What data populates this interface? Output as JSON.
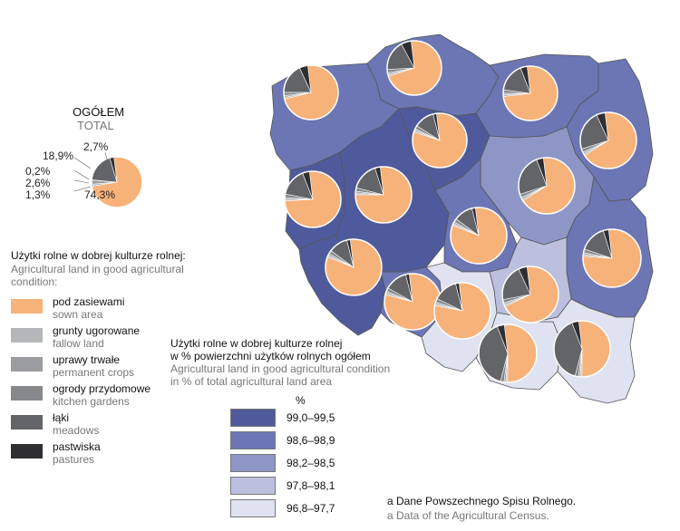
{
  "total": {
    "title_pl": "OGÓŁEM",
    "title_en": "TOTAL",
    "labels": [
      "18,9%",
      "2,7%",
      "0,2%",
      "2,6%",
      "1,3%",
      "74,3%"
    ]
  },
  "categories_title": {
    "pl": "Użytki rolne w dobrej kulturze rolnej:",
    "en": "Agricultural land in good agricultural condition:"
  },
  "categories": [
    {
      "pl": "pod zasiewami",
      "en": "sown area",
      "color": "#f7b27a"
    },
    {
      "pl": "grunty ugorowane",
      "en": "fallow land",
      "color": "#b4b6b9"
    },
    {
      "pl": "uprawy trwałe",
      "en": "permanent crops",
      "color": "#9a9c9f"
    },
    {
      "pl": "ogrody przydomowe",
      "en": "kitchen gardens",
      "color": "#86888b"
    },
    {
      "pl": "łąki",
      "en": "meadows",
      "color": "#636467"
    },
    {
      "pl": "pastwiska",
      "en": "pastures",
      "color": "#2f2f31"
    }
  ],
  "choropleth": {
    "title_pl_1": "Użytki rolne w dobrej kulturze rolnej",
    "title_pl_2": "w % powierzchni użytków rolnych ogółem",
    "title_en_1": "Agricultural land in good agricultural condition",
    "title_en_2": "in % of total agricultural land area",
    "unit": "%",
    "classes": [
      {
        "label": "99,0–99,5",
        "color": "#4f5a9c"
      },
      {
        "label": "98,6–98,9",
        "color": "#6c76b4"
      },
      {
        "label": "98,2–98,5",
        "color": "#8e96c6"
      },
      {
        "label": "97,8–98,1",
        "color": "#bcc0de"
      },
      {
        "label": "96,8–97,7",
        "color": "#dfe2f0"
      }
    ]
  },
  "source": {
    "pl": "a Dane Powszechnego Spisu Rolnego.",
    "en": "a Data of the Agricultural Census."
  },
  "pie_data": [
    {
      "region": 1,
      "shares": [
        73,
        1,
        1,
        2,
        18,
        5
      ]
    },
    {
      "region": 2,
      "shares": [
        72,
        1,
        1,
        2,
        18,
        6
      ]
    },
    {
      "region": 3,
      "shares": [
        75,
        1,
        1,
        2,
        17,
        4
      ]
    },
    {
      "region": 4,
      "shares": [
        68,
        1,
        1,
        2,
        23,
        5
      ]
    },
    {
      "region": 5,
      "shares": [
        82,
        1,
        1,
        2,
        12,
        2
      ]
    },
    {
      "region": 6,
      "shares": [
        76,
        1,
        1,
        2,
        16,
        4
      ]
    },
    {
      "region": 7,
      "shares": [
        77,
        1,
        1,
        2,
        16,
        3
      ]
    },
    {
      "region": 8,
      "shares": [
        68,
        1,
        1,
        2,
        24,
        4
      ]
    },
    {
      "region": 9,
      "shares": [
        83,
        1,
        1,
        2,
        11,
        2
      ]
    },
    {
      "region": 10,
      "shares": [
        78,
        1,
        1,
        2,
        15,
        3
      ]
    },
    {
      "region": 11,
      "shares": [
        83,
        1,
        1,
        2,
        11,
        2
      ]
    },
    {
      "region": 12,
      "shares": [
        81,
        1,
        1,
        2,
        13,
        2
      ]
    },
    {
      "region": 13,
      "shares": [
        80,
        1,
        1,
        2,
        14,
        2
      ]
    },
    {
      "region": 14,
      "shares": [
        70,
        1,
        1,
        2,
        21,
        5
      ]
    },
    {
      "region": 15,
      "shares": [
        52,
        1,
        1,
        2,
        40,
        4
      ]
    },
    {
      "region": 16,
      "shares": [
        52,
        1,
        1,
        2,
        40,
        4
      ]
    }
  ]
}
